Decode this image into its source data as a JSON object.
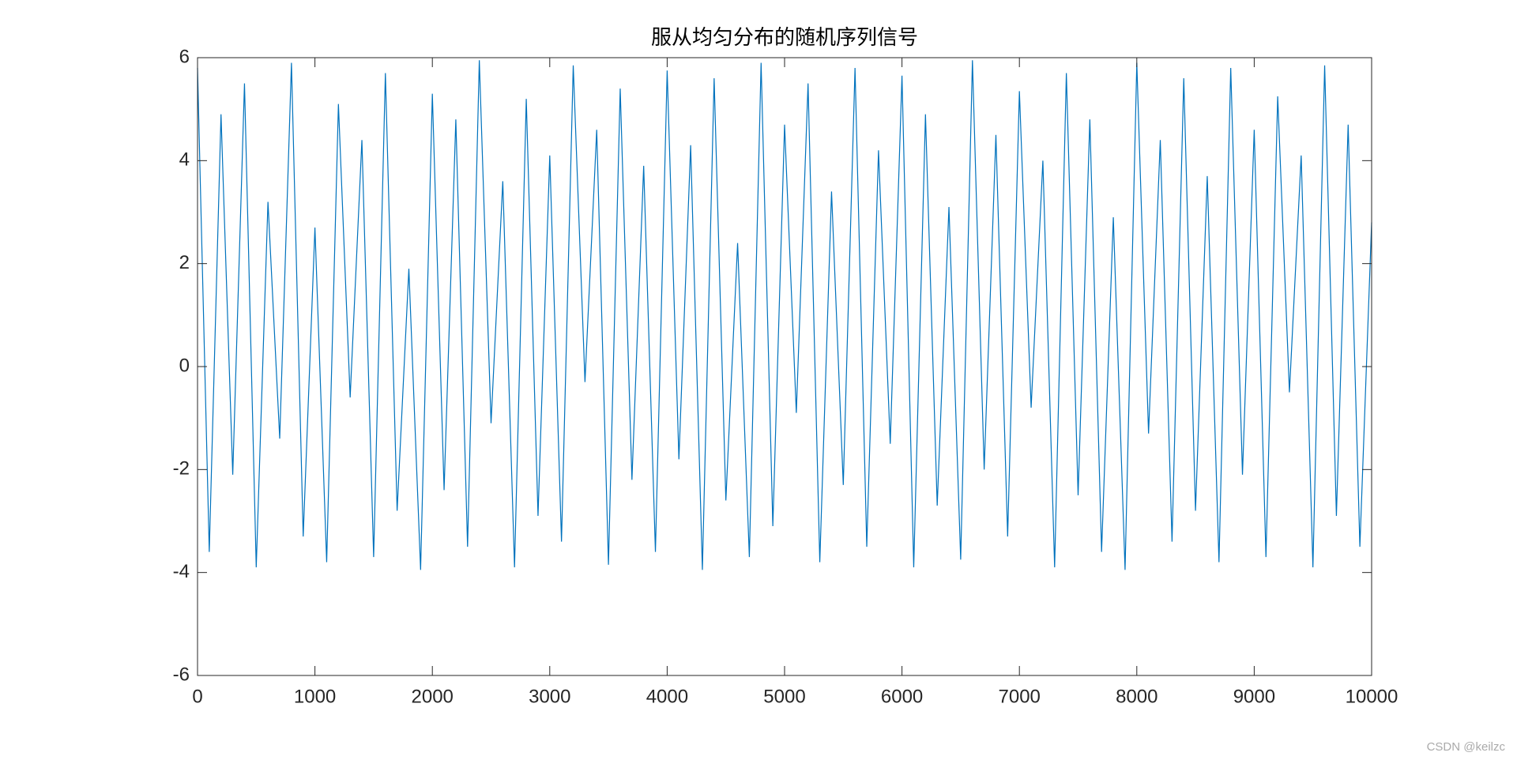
{
  "chart_data": {
    "type": "line",
    "title": "服从均匀分布的随机序列信号",
    "x": [
      0,
      100,
      200,
      300,
      400,
      500,
      600,
      700,
      800,
      900,
      1000,
      1100,
      1200,
      1300,
      1400,
      1500,
      1600,
      1700,
      1800,
      1900,
      2000,
      2100,
      2200,
      2300,
      2400,
      2500,
      2600,
      2700,
      2800,
      2900,
      3000,
      3100,
      3200,
      3300,
      3400,
      3500,
      3600,
      3700,
      3800,
      3900,
      4000,
      4100,
      4200,
      4300,
      4400,
      4500,
      4600,
      4700,
      4800,
      4900,
      5000,
      5100,
      5200,
      5300,
      5400,
      5500,
      5600,
      5700,
      5800,
      5900,
      6000,
      6100,
      6200,
      6300,
      6400,
      6500,
      6600,
      6700,
      6800,
      6900,
      7000,
      7100,
      7200,
      7300,
      7400,
      7500,
      7600,
      7700,
      7800,
      7900,
      8000,
      8100,
      8200,
      8300,
      8400,
      8500,
      8600,
      8700,
      8800,
      8900,
      9000,
      9100,
      9200,
      9300,
      9400,
      9500,
      9600,
      9700,
      9800,
      9900,
      10000
    ],
    "values": [
      5.8,
      -3.6,
      4.9,
      -2.1,
      5.5,
      -3.9,
      3.2,
      -1.4,
      5.9,
      -3.3,
      2.7,
      -3.8,
      5.1,
      -0.6,
      4.4,
      -3.7,
      5.7,
      -2.8,
      1.9,
      -3.95,
      5.3,
      -2.4,
      4.8,
      -3.5,
      5.95,
      -1.1,
      3.6,
      -3.9,
      5.2,
      -2.9,
      4.1,
      -3.4,
      5.85,
      -0.3,
      4.6,
      -3.85,
      5.4,
      -2.2,
      3.9,
      -3.6,
      5.75,
      -1.8,
      4.3,
      -3.95,
      5.6,
      -2.6,
      2.4,
      -3.7,
      5.9,
      -3.1,
      4.7,
      -0.9,
      5.5,
      -3.8,
      3.4,
      -2.3,
      5.8,
      -3.5,
      4.2,
      -1.5,
      5.65,
      -3.9,
      4.9,
      -2.7,
      3.1,
      -3.75,
      5.95,
      -2.0,
      4.5,
      -3.3,
      5.35,
      -0.8,
      4.0,
      -3.9,
      5.7,
      -2.5,
      4.8,
      -3.6,
      2.9,
      -3.95,
      5.9,
      -1.3,
      4.4,
      -3.4,
      5.6,
      -2.8,
      3.7,
      -3.8,
      5.8,
      -2.1,
      4.6,
      -3.7,
      5.25,
      -0.5,
      4.1,
      -3.9,
      5.85,
      -2.9,
      4.7,
      -3.5,
      2.8
    ],
    "color": "#0072bd",
    "xlim": [
      0,
      10000
    ],
    "xticks": [
      0,
      1000,
      2000,
      3000,
      4000,
      5000,
      6000,
      7000,
      8000,
      9000,
      10000
    ],
    "ylim": [
      -6,
      6
    ],
    "yticks": [
      -6,
      -4,
      -2,
      0,
      2,
      4,
      6
    ],
    "grid": false,
    "watermark": "CSDN @keilzc"
  }
}
